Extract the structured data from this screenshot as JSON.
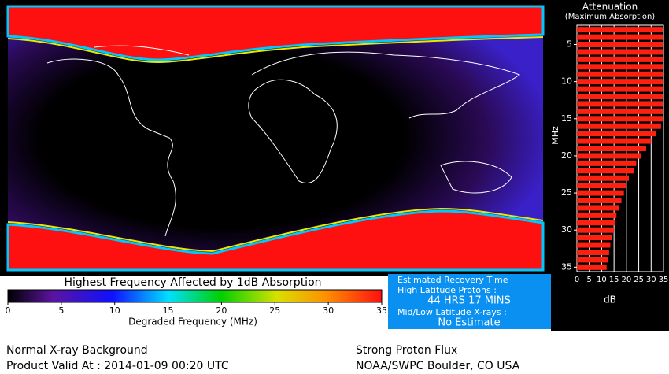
{
  "map": {
    "colorbar": {
      "title": "Highest Frequency Affected by 1dB Absorption",
      "ticks": [
        0,
        5,
        10,
        15,
        20,
        25,
        30,
        35
      ],
      "lim": [
        0,
        35
      ],
      "label": "Degraded Frequency (MHz)"
    }
  },
  "recovery": {
    "title": "Estimated Recovery Time",
    "protons_label": "High Latitude Protons :",
    "protons_value": "44 HRS 17 MINS",
    "xray_label": "Mid/Low Latitude X-rays :",
    "xray_value": "No Estimate"
  },
  "footer": {
    "left_1": "Normal X-ray Background",
    "left_2": "Product Valid At : 2014-01-09 00:20 UTC",
    "right_1": "Strong Proton Flux",
    "right_2": "NOAA/SWPC Boulder, CO USA"
  },
  "chart_data": {
    "type": "bar",
    "title": "Attenuation",
    "subtitle": "(Maximum Absorption)",
    "orientation": "horizontal",
    "categories": [
      3,
      4,
      5,
      6,
      7,
      8,
      9,
      10,
      11,
      12,
      13,
      14,
      15,
      16,
      17,
      18,
      19,
      20,
      21,
      22,
      23,
      24,
      25,
      26,
      27,
      28,
      29,
      30,
      31,
      32,
      33,
      34,
      35
    ],
    "values": [
      35,
      35,
      35,
      35,
      35,
      35,
      35,
      35,
      35,
      35,
      35,
      35,
      35,
      34,
      32,
      30,
      28,
      26,
      24,
      23,
      21,
      20,
      19,
      18,
      17,
      16,
      15.5,
      15,
      14,
      13.5,
      13,
      12.5,
      12
    ],
    "color": "#ff2010",
    "xlabel": "dB",
    "ylabel": "MHz",
    "xlim": [
      0,
      35
    ],
    "xticks": [
      0,
      5,
      10,
      15,
      20,
      25,
      30,
      35
    ],
    "ylim": [
      2.4,
      35.6
    ],
    "yticks": [
      5,
      10,
      15,
      20,
      25,
      30,
      35
    ]
  }
}
